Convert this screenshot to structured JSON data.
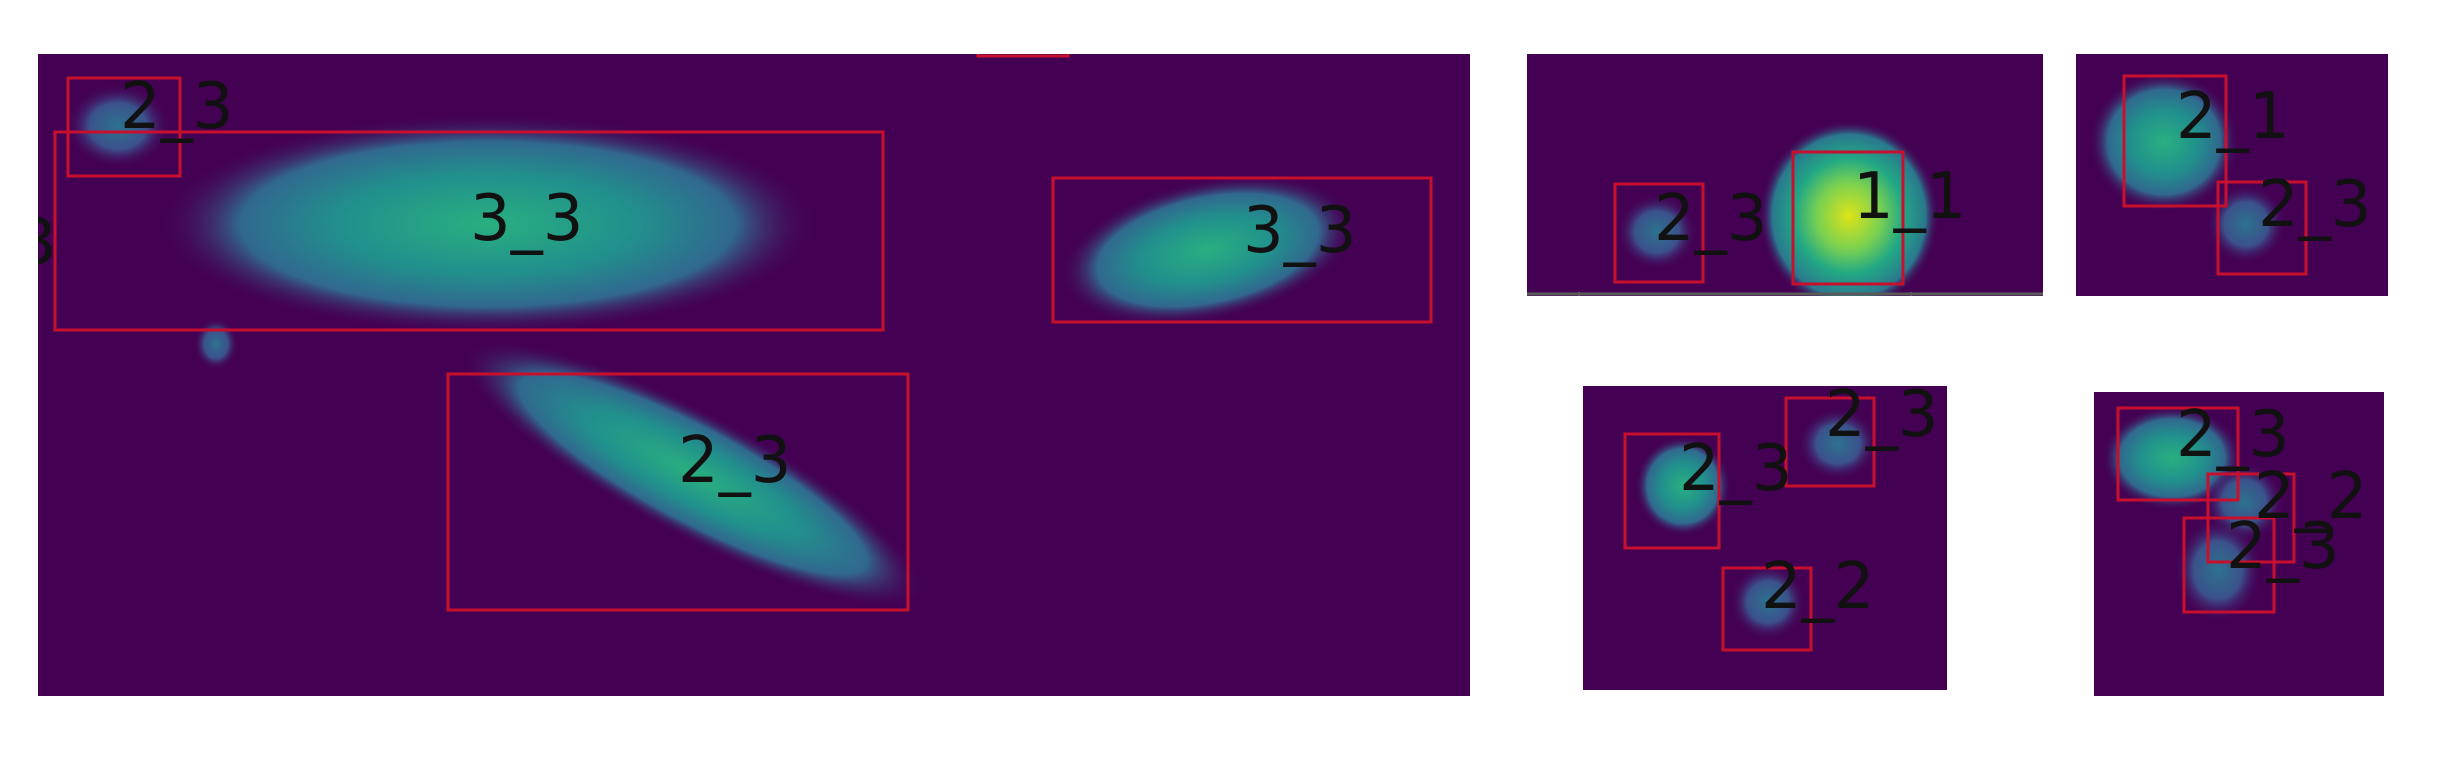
{
  "colors": {
    "background": "#440154",
    "box": "#c8102e",
    "label": "#111111"
  },
  "colormap": "viridis",
  "panels": [
    {
      "id": "panel-1",
      "detections": [
        {
          "label": "2_3",
          "blob": "small-blob"
        },
        {
          "label": "3_3",
          "blob": "large-ellipse"
        },
        {
          "label": "3_3",
          "blob": "ellipse"
        },
        {
          "label": "2_3",
          "blob": "diagonal-ellipse"
        }
      ],
      "clipped_labels": [
        "3"
      ]
    },
    {
      "id": "panel-2",
      "detections": [
        {
          "label": "2_3",
          "blob": "small-blob"
        },
        {
          "label": "1_1",
          "blob": "bright-circle"
        }
      ]
    },
    {
      "id": "panel-3",
      "detections": [
        {
          "label": "2_1",
          "blob": "blob"
        },
        {
          "label": "2_3",
          "blob": "faint-blob"
        }
      ]
    },
    {
      "id": "panel-4",
      "detections": [
        {
          "label": "2_3",
          "blob": "blob"
        },
        {
          "label": "2_3",
          "blob": "faint-blob"
        },
        {
          "label": "2_2",
          "blob": "small-blob"
        }
      ]
    },
    {
      "id": "panel-5",
      "detections": [
        {
          "label": "2_3",
          "blob": "blob"
        },
        {
          "label": "2_2",
          "blob": "faint-blob"
        },
        {
          "label": "2_3",
          "blob": "small-blob"
        }
      ]
    }
  ]
}
